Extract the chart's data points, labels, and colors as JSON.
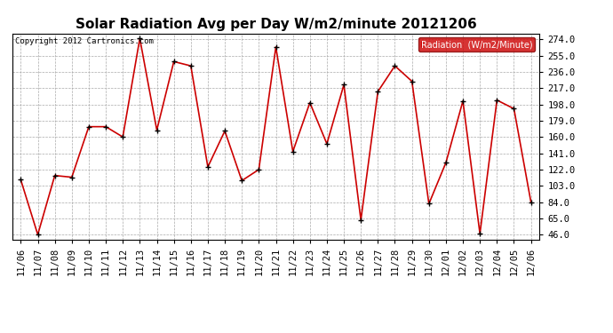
{
  "title": "Solar Radiation Avg per Day W/m2/minute 20121206",
  "copyright_text": "Copyright 2012 Cartronics.com",
  "legend_label": "Radiation  (W/m2/Minute)",
  "x_labels": [
    "11/06",
    "11/07",
    "11/08",
    "11/09",
    "11/10",
    "11/11",
    "11/12",
    "11/13",
    "11/14",
    "11/15",
    "11/16",
    "11/17",
    "11/18",
    "11/19",
    "11/20",
    "11/21",
    "11/22",
    "11/23",
    "11/24",
    "11/25",
    "11/26",
    "11/27",
    "11/28",
    "11/29",
    "11/30",
    "12/01",
    "12/02",
    "12/03",
    "12/04",
    "12/05",
    "12/06"
  ],
  "y_values": [
    110,
    46,
    115,
    113,
    172,
    172,
    160,
    275,
    168,
    248,
    243,
    125,
    167,
    109,
    122,
    265,
    143,
    200,
    152,
    221,
    63,
    213,
    243,
    225,
    82,
    130,
    202,
    47,
    203,
    193,
    84
  ],
  "y_ticks": [
    46.0,
    65.0,
    84.0,
    103.0,
    122.0,
    141.0,
    160.0,
    179.0,
    198.0,
    217.0,
    236.0,
    255.0,
    274.0
  ],
  "ylim": [
    40,
    281
  ],
  "line_color": "#cc0000",
  "marker_color": "#000000",
  "bg_color": "#ffffff",
  "grid_color": "#aaaaaa",
  "title_fontsize": 11,
  "tick_fontsize": 7.5,
  "legend_bg": "#cc0000",
  "legend_text_color": "#ffffff"
}
